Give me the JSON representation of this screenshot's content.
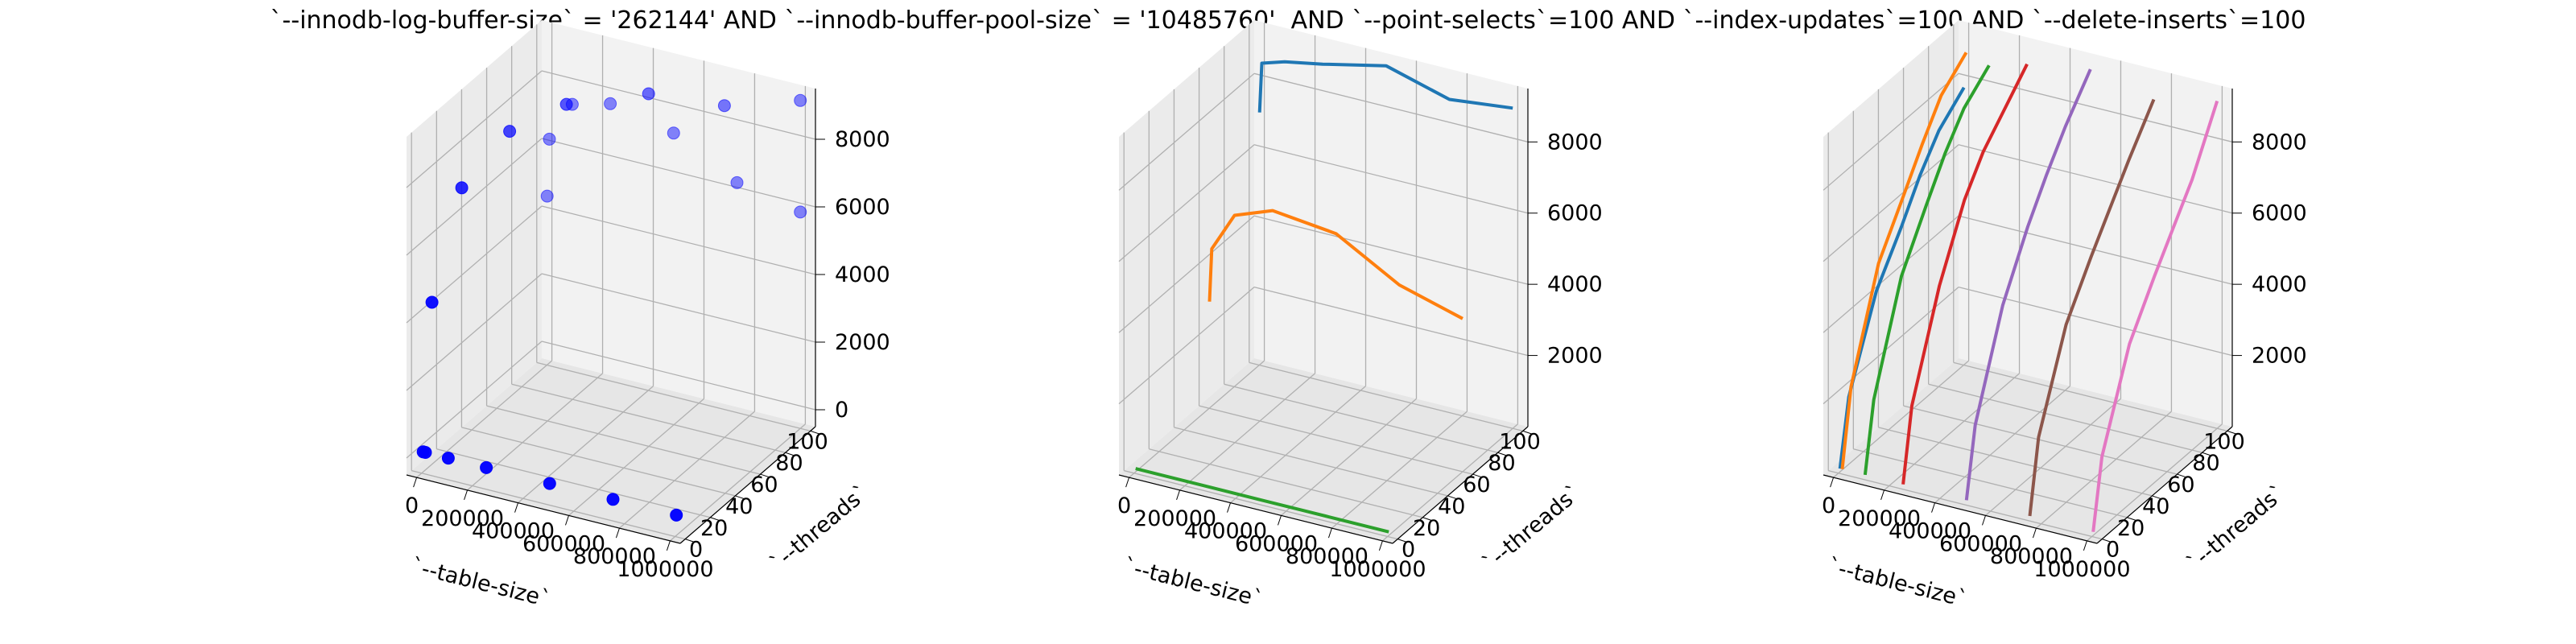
{
  "suptitle": "`--innodb-log-buffer-size` = '262144' AND `--innodb-buffer-pool-size` = '10485760'  AND `--point-selects`=100 AND `--index-updates`=100 AND `--delete-inserts`=100",
  "colors": {
    "marker": "#0000ff",
    "pane_wall": "#f2f2f2",
    "pane_floor": "#e6e6e6",
    "grid": "#b0b0b0"
  },
  "chart_data": [
    {
      "type": "scatter3d",
      "title": "",
      "xlabel": "`--table-size`",
      "ylabel": "`--threads`",
      "zlabel": "",
      "xticks": [
        "0",
        "200000",
        "400000",
        "600000",
        "800000",
        "1000000"
      ],
      "yticks": [
        "0",
        "20",
        "40",
        "60",
        "80",
        "100"
      ],
      "zticks": [
        "0",
        "2000",
        "4000",
        "6000",
        "8000"
      ],
      "xlim": [
        -40000,
        1040000
      ],
      "ylim": [
        -4,
        104
      ],
      "zlim": [
        -500,
        9500
      ],
      "points": [
        {
          "x": 1000,
          "y": 1,
          "z": 100
        },
        {
          "x": 10000,
          "y": 1,
          "z": 100
        },
        {
          "x": 100000,
          "y": 1,
          "z": 100
        },
        {
          "x": 250000,
          "y": 1,
          "z": 100
        },
        {
          "x": 500000,
          "y": 1,
          "z": 100
        },
        {
          "x": 750000,
          "y": 1,
          "z": 100
        },
        {
          "x": 1000000,
          "y": 1,
          "z": 100
        },
        {
          "x": 1000,
          "y": 100,
          "z": 4500
        },
        {
          "x": 10000,
          "y": 100,
          "z": 6200
        },
        {
          "x": 100000,
          "y": 100,
          "z": 7400
        },
        {
          "x": 250000,
          "y": 100,
          "z": 7700
        },
        {
          "x": 500000,
          "y": 100,
          "z": 7300
        },
        {
          "x": 750000,
          "y": 100,
          "z": 6300
        },
        {
          "x": 1000000,
          "y": 100,
          "z": 5900
        },
        {
          "x": 1000,
          "y": 8,
          "z": 4300
        },
        {
          "x": 10000,
          "y": 30,
          "z": 7000
        },
        {
          "x": 100000,
          "y": 50,
          "z": 8200
        },
        {
          "x": 250000,
          "y": 65,
          "z": 8800
        },
        {
          "x": 500000,
          "y": 80,
          "z": 9100
        },
        {
          "x": 750000,
          "y": 90,
          "z": 8900
        },
        {
          "x": 1000000,
          "y": 100,
          "z": 9200
        }
      ]
    },
    {
      "type": "line3d",
      "title": "",
      "xlabel": "`--table-size`",
      "ylabel": "`--threads`",
      "zlabel": "",
      "xticks": [
        "0",
        "200000",
        "400000",
        "600000",
        "800000",
        "1000000"
      ],
      "yticks": [
        "0",
        "20",
        "40",
        "60",
        "80",
        "100"
      ],
      "zticks": [
        "2000",
        "4000",
        "6000",
        "8000"
      ],
      "xlim": [
        -40000,
        1040000
      ],
      "ylim": [
        -4,
        104
      ],
      "zlim": [
        0,
        9500
      ],
      "series": [
        {
          "color": "#1f77b4",
          "y": 100,
          "points": [
            [
              1000,
              7100
            ],
            [
              10000,
              8500
            ],
            [
              100000,
              8700
            ],
            [
              250000,
              8900
            ],
            [
              500000,
              9300
            ],
            [
              750000,
              8800
            ],
            [
              1000000,
              9000
            ]
          ]
        },
        {
          "color": "#ff7f0e",
          "y": 60,
          "points": [
            [
              1000,
              3000
            ],
            [
              10000,
              4500
            ],
            [
              100000,
              5600
            ],
            [
              250000,
              6000
            ],
            [
              500000,
              5800
            ],
            [
              750000,
              4800
            ],
            [
              1000000,
              4300
            ]
          ]
        },
        {
          "color": "#2ca02c",
          "y": 1,
          "points": [
            [
              1000,
              100
            ],
            [
              10000,
              100
            ],
            [
              100000,
              100
            ],
            [
              250000,
              100
            ],
            [
              500000,
              100
            ],
            [
              750000,
              100
            ],
            [
              1000000,
              100
            ]
          ]
        }
      ]
    },
    {
      "type": "line3d",
      "title": "",
      "xlabel": "`--table-size`",
      "ylabel": "`--threads`",
      "zlabel": "",
      "xticks": [
        "0",
        "200000",
        "400000",
        "600000",
        "800000",
        "1000000"
      ],
      "yticks": [
        "0",
        "20",
        "40",
        "60",
        "80",
        "100"
      ],
      "zticks": [
        "2000",
        "4000",
        "6000",
        "8000"
      ],
      "xlim": [
        -40000,
        1040000
      ],
      "ylim": [
        -4,
        104
      ],
      "zlim": [
        0,
        9500
      ],
      "series": [
        {
          "color": "#1f77b4",
          "x": 1000,
          "points": [
            [
              1,
              100
            ],
            [
              8,
              1900
            ],
            [
              30,
              4200
            ],
            [
              50,
              5400
            ],
            [
              65,
              6400
            ],
            [
              80,
              7200
            ],
            [
              100,
              7800
            ]
          ]
        },
        {
          "color": "#ff7f0e",
          "x": 10000,
          "points": [
            [
              1,
              100
            ],
            [
              8,
              2200
            ],
            [
              30,
              5000
            ],
            [
              50,
              6300
            ],
            [
              65,
              7300
            ],
            [
              80,
              8200
            ],
            [
              100,
              8800
            ]
          ]
        },
        {
          "color": "#2ca02c",
          "x": 100000,
          "points": [
            [
              1,
              100
            ],
            [
              8,
              2000
            ],
            [
              30,
              4800
            ],
            [
              50,
              6200
            ],
            [
              65,
              7200
            ],
            [
              80,
              8000
            ],
            [
              100,
              8600
            ]
          ]
        },
        {
          "color": "#d62728",
          "x": 250000,
          "points": [
            [
              1,
              100
            ],
            [
              8,
              2100
            ],
            [
              30,
              4800
            ],
            [
              50,
              6600
            ],
            [
              65,
              7500
            ],
            [
              80,
              8100
            ],
            [
              100,
              8900
            ]
          ]
        },
        {
          "color": "#9467bd",
          "x": 500000,
          "points": [
            [
              1,
              100
            ],
            [
              8,
              2000
            ],
            [
              30,
              4700
            ],
            [
              50,
              6300
            ],
            [
              65,
              7300
            ],
            [
              80,
              8200
            ],
            [
              100,
              9200
            ]
          ]
        },
        {
          "color": "#8c564b",
          "x": 750000,
          "points": [
            [
              1,
              100
            ],
            [
              8,
              2100
            ],
            [
              30,
              4600
            ],
            [
              50,
              5900
            ],
            [
              65,
              6800
            ],
            [
              80,
              7700
            ],
            [
              100,
              8800
            ]
          ]
        },
        {
          "color": "#e377c2",
          "x": 1000000,
          "points": [
            [
              1,
              100
            ],
            [
              8,
              2000
            ],
            [
              30,
              4500
            ],
            [
              50,
              5800
            ],
            [
              65,
              6700
            ],
            [
              80,
              7600
            ],
            [
              100,
              9200
            ]
          ]
        }
      ]
    }
  ]
}
